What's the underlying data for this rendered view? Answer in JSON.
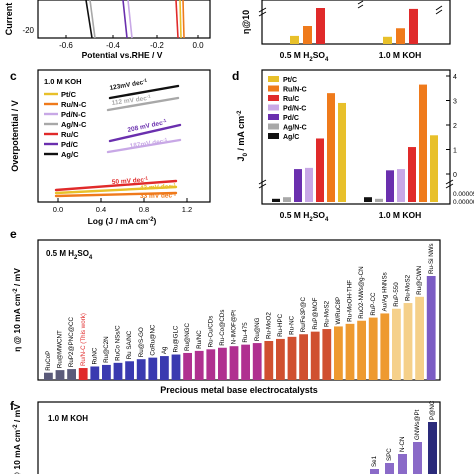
{
  "colors": {
    "Pt/C": "#e8c02a",
    "Ru/N-C": "#ef7a1b",
    "Ru/C": "#e02a2a",
    "Pd/N-C": "#c8a8e6",
    "Pd/C": "#6a2fae",
    "Ag/N-C": "#a8a8a8",
    "Ag/C": "#111111",
    "bar_e": "#7b5cc4",
    "bar_f": "#2a2a7a"
  },
  "chart_data": [
    {
      "id": "b",
      "type": "bar",
      "ylabel": "η@10",
      "categories": [
        "0.5 M H2SO4",
        "1.0 M KOH"
      ],
      "category_labels": [
        [
          "0.5 M H",
          "2",
          "SO",
          "4"
        ],
        [
          "1.0 M KOH"
        ]
      ],
      "series": [
        {
          "name": "Pt/C",
          "values": [
            18,
            16
          ]
        },
        {
          "name": "Ru/N-C",
          "values": [
            40,
            35
          ]
        },
        {
          "name": "Ru/C",
          "values": [
            80,
            78
          ]
        }
      ]
    },
    {
      "id": "a",
      "type": "line",
      "xlabel": "Potential vs.RHE / V",
      "ylabel": "Current",
      "x_ticks": [
        "-0.6",
        "-0.4",
        "-0.2",
        "0.0"
      ],
      "y_ticks": [
        "-20"
      ]
    },
    {
      "id": "c",
      "type": "line",
      "panel_label": "c",
      "condition": "1.0 M KOH",
      "xlabel": "Log (J / mA cm-2)",
      "ylabel": "Overpotential / V",
      "x_ticks": [
        "0.0",
        "0.4",
        "0.8",
        "1.2"
      ],
      "legend": [
        "Pt/C",
        "Ru/N-C",
        "Pd/N-C",
        "Ag/N-C",
        "Ru/C",
        "Pd/C",
        "Ag/C"
      ],
      "annotations": [
        {
          "text": "123mV dec",
          "sup": "-1",
          "series": "Ag/C"
        },
        {
          "text": "112 mV dec",
          "sup": "-1",
          "series": "Ag/N-C"
        },
        {
          "text": "208 mV dec",
          "sup": "-1",
          "series": "Pd/C"
        },
        {
          "text": "187mV dec",
          "sup": "-1",
          "series": "Pd/N-C"
        },
        {
          "text": "50 mV dec",
          "sup": "-1",
          "series": "Ru/C"
        },
        {
          "text": "43 mV dec",
          "sup": "-1",
          "series": "Pt/C"
        },
        {
          "text": "33 mV dec",
          "sup": "-1",
          "series": "Ru/N-C"
        }
      ]
    },
    {
      "id": "d",
      "type": "bar",
      "panel_label": "d",
      "ylabel": "J0 / mA cm-2",
      "y_ticks": [
        "0",
        "1",
        "2",
        "3",
        "4"
      ],
      "y_ticks_low": [
        "0.00000",
        "0.00005"
      ],
      "categories": [
        "0.5 M H2SO4",
        "1.0 M KOH"
      ],
      "category_labels": [
        [
          "0.5 M H",
          "2",
          "SO",
          "4"
        ],
        [
          "1.0 M KOH"
        ]
      ],
      "legend": [
        "Pt/C",
        "Ru/N-C",
        "Ru/C",
        "Pd/N-C",
        "Pd/C",
        "Ag/N-C",
        "Ag/C"
      ],
      "series": [
        {
          "name": "Ag/C",
          "values": [
            2e-05,
            3e-05
          ]
        },
        {
          "name": "Ag/N-C",
          "values": [
            3e-05,
            2e-05
          ]
        },
        {
          "name": "Pd/C",
          "values": [
            0.2,
            0.15
          ]
        },
        {
          "name": "Pd/N-C",
          "values": [
            0.25,
            0.2
          ]
        },
        {
          "name": "Ru/C",
          "values": [
            1.45,
            1.1
          ]
        },
        {
          "name": "Ru/N-C",
          "values": [
            3.3,
            3.65
          ]
        },
        {
          "name": "Pt/C",
          "values": [
            2.9,
            1.58
          ]
        }
      ]
    },
    {
      "id": "e",
      "type": "bar",
      "panel_label": "e",
      "condition": [
        "0.5 M H",
        "2",
        "SO",
        "4"
      ],
      "ylabel": "η @ 10 mA cm-2 / mV",
      "xlabel": "Precious metal base electrocatalysts",
      "categories": [
        "RuCoP",
        "Ru@MWCNT",
        "RuP2@PNC@CC",
        "Ru/N-C (This work)",
        "RuNC",
        "Ru@C2N",
        "RuCo NSs/C",
        "Ru SA/NC",
        "Ru@S-GO",
        "CoRu@NC",
        "Ag",
        "Ru@GLC",
        "Ru@NGC",
        "Ru/NC",
        "Ru-Cu/CDs",
        "Ru-Co@CDs",
        "N-IMOF@Pt",
        "Ru-475",
        "Ru@NG",
        "Ru-MoO2",
        "Ru-HPC",
        "Ru-NC",
        "Ru/Fe3P@C",
        "RuP@MOF",
        "Ru-MoS2",
        "W/RuC8P",
        "Ru-MoOH-THF",
        "RuO2-NWs@g-CN",
        "RuP-CC",
        "Au/Ag HNNSs",
        "RuP-550",
        "Ru-MoS2",
        "Ru@CWN",
        "Ru-Si NWs"
      ],
      "values": [
        14,
        19,
        21,
        23,
        26,
        29,
        33,
        36,
        40,
        43,
        46,
        49,
        52,
        56,
        59,
        62,
        65,
        68,
        71,
        75,
        79,
        83,
        88,
        93,
        98,
        103,
        108,
        114,
        120,
        128,
        137,
        148,
        160,
        200
      ],
      "highlight": "Ru/N-C (This work)"
    },
    {
      "id": "f",
      "type": "bar",
      "panel_label": "f",
      "condition": "1.0 M KOH",
      "ylabel": "η @ 10 mA cm-2 / mV",
      "categories": [
        "Se1",
        "SPC",
        "N-CN",
        "GNWs@Pt",
        "P@NC"
      ],
      "values": [
        5,
        11,
        20,
        32,
        52
      ]
    }
  ]
}
